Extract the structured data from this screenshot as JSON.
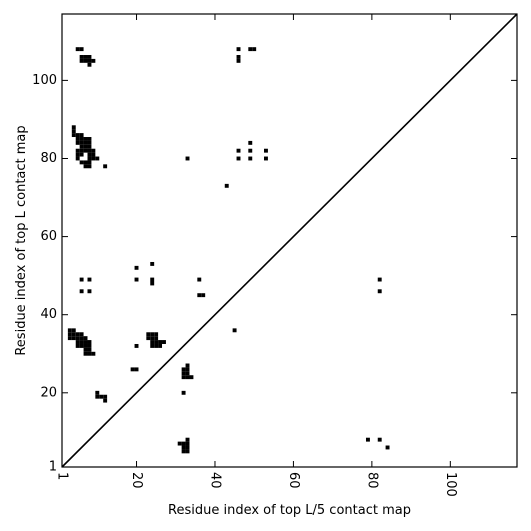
{
  "chart_data": {
    "type": "scatter",
    "xlabel": "Residue index of top L/5 contact map",
    "ylabel": "Residue index of top L contact map",
    "xlim": [
      1,
      117
    ],
    "ylim": [
      1,
      117
    ],
    "x_ticks": [
      1,
      20,
      40,
      60,
      80,
      100
    ],
    "x_tick_labels": [
      "1",
      "20",
      "40",
      "60",
      "80",
      "100"
    ],
    "y_ticks": [
      1,
      20,
      40,
      60,
      80,
      100
    ],
    "y_tick_labels": [
      "1",
      "20",
      "40",
      "60",
      "80",
      "100"
    ],
    "x_tick_rotation": -90,
    "diagonal": true,
    "grid": false,
    "marker_color": "#000000",
    "series": [
      {
        "points": [
          [
            5,
            108
          ],
          [
            6,
            108
          ],
          [
            6,
            106
          ],
          [
            7,
            106
          ],
          [
            8,
            106
          ],
          [
            6,
            105
          ],
          [
            7,
            105
          ],
          [
            8,
            105
          ],
          [
            9,
            105
          ],
          [
            8,
            104
          ],
          [
            4,
            88
          ],
          [
            4,
            87
          ],
          [
            4,
            86
          ],
          [
            5,
            86
          ],
          [
            6,
            86
          ],
          [
            5,
            85
          ],
          [
            6,
            85
          ],
          [
            7,
            85
          ],
          [
            8,
            85
          ],
          [
            5,
            84
          ],
          [
            6,
            84
          ],
          [
            7,
            84
          ],
          [
            8,
            84
          ],
          [
            6,
            83
          ],
          [
            7,
            83
          ],
          [
            8,
            83
          ],
          [
            5,
            82
          ],
          [
            6,
            82
          ],
          [
            7,
            82
          ],
          [
            8,
            82
          ],
          [
            9,
            82
          ],
          [
            5,
            81
          ],
          [
            6,
            81
          ],
          [
            8,
            81
          ],
          [
            9,
            81
          ],
          [
            5,
            80
          ],
          [
            8,
            80
          ],
          [
            9,
            80
          ],
          [
            10,
            80
          ],
          [
            6,
            79
          ],
          [
            7,
            79
          ],
          [
            8,
            79
          ],
          [
            7,
            78
          ],
          [
            8,
            78
          ],
          [
            12,
            78
          ],
          [
            33,
            80
          ],
          [
            43,
            73
          ],
          [
            46,
            108
          ],
          [
            46,
            106
          ],
          [
            46,
            105
          ],
          [
            49,
            108
          ],
          [
            50,
            108
          ],
          [
            46,
            82
          ],
          [
            46,
            80
          ],
          [
            49,
            84
          ],
          [
            49,
            82
          ],
          [
            49,
            80
          ],
          [
            53,
            82
          ],
          [
            53,
            80
          ],
          [
            20,
            52
          ],
          [
            24,
            53
          ],
          [
            20,
            49
          ],
          [
            24,
            49
          ],
          [
            24,
            48
          ],
          [
            36,
            49
          ],
          [
            6,
            49
          ],
          [
            8,
            49
          ],
          [
            6,
            46
          ],
          [
            8,
            46
          ],
          [
            36,
            45
          ],
          [
            37,
            45
          ],
          [
            82,
            49
          ],
          [
            82,
            46
          ],
          [
            45,
            36
          ],
          [
            3,
            36
          ],
          [
            4,
            36
          ],
          [
            3,
            35
          ],
          [
            4,
            35
          ],
          [
            5,
            35
          ],
          [
            6,
            35
          ],
          [
            3,
            34
          ],
          [
            4,
            34
          ],
          [
            5,
            34
          ],
          [
            6,
            34
          ],
          [
            7,
            34
          ],
          [
            5,
            33
          ],
          [
            6,
            33
          ],
          [
            7,
            33
          ],
          [
            8,
            33
          ],
          [
            5,
            32
          ],
          [
            6,
            32
          ],
          [
            7,
            32
          ],
          [
            8,
            32
          ],
          [
            7,
            31
          ],
          [
            8,
            31
          ],
          [
            7,
            30
          ],
          [
            8,
            30
          ],
          [
            9,
            30
          ],
          [
            23,
            35
          ],
          [
            24,
            35
          ],
          [
            25,
            35
          ],
          [
            23,
            34
          ],
          [
            24,
            34
          ],
          [
            25,
            34
          ],
          [
            24,
            33
          ],
          [
            25,
            33
          ],
          [
            26,
            33
          ],
          [
            27,
            33
          ],
          [
            24,
            32
          ],
          [
            25,
            32
          ],
          [
            26,
            32
          ],
          [
            20,
            32
          ],
          [
            19,
            26
          ],
          [
            20,
            26
          ],
          [
            33,
            27
          ],
          [
            32,
            26
          ],
          [
            33,
            26
          ],
          [
            32,
            25
          ],
          [
            33,
            25
          ],
          [
            32,
            24
          ],
          [
            33,
            24
          ],
          [
            34,
            24
          ],
          [
            10,
            20
          ],
          [
            10,
            19
          ],
          [
            11,
            19
          ],
          [
            12,
            19
          ],
          [
            12,
            18
          ],
          [
            32,
            20
          ],
          [
            33,
            8
          ],
          [
            31,
            7
          ],
          [
            32,
            7
          ],
          [
            33,
            7
          ],
          [
            32,
            6
          ],
          [
            33,
            6
          ],
          [
            32,
            5
          ],
          [
            33,
            5
          ],
          [
            79,
            8
          ],
          [
            82,
            8
          ],
          [
            84,
            6
          ]
        ]
      }
    ]
  }
}
